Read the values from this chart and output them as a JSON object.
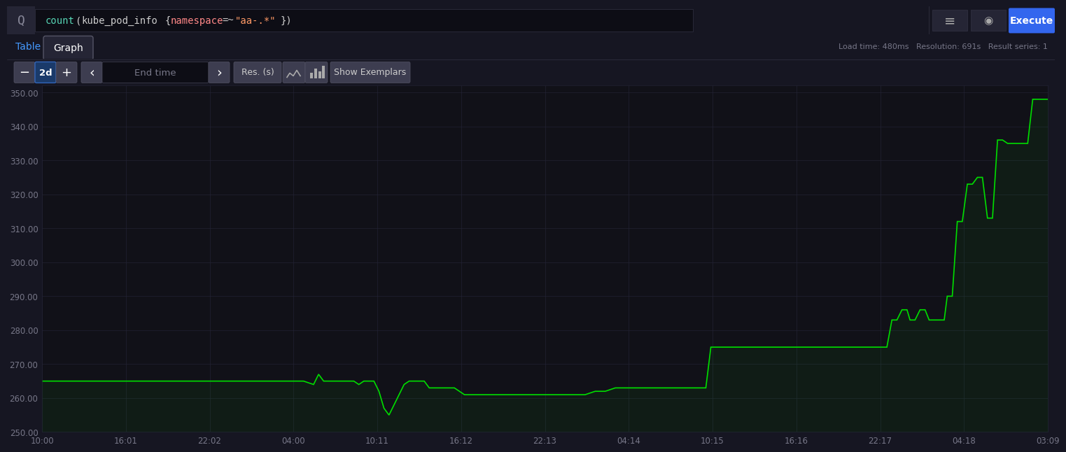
{
  "background_color": "#161622",
  "plot_bg_color": "#111118",
  "line_color": "#00dd00",
  "grid_color": "#222233",
  "tick_color": "#777788",
  "y_min": 250,
  "y_max": 352,
  "y_ticks": [
    250,
    260,
    270,
    280,
    290,
    300,
    310,
    320,
    330,
    340,
    350
  ],
  "x_labels": [
    "10:00",
    "16:01",
    "22:02",
    "04:00",
    "10:11",
    "16:12",
    "22:13",
    "04:14",
    "10:15",
    "16:16",
    "22:17",
    "04:18",
    "03:09"
  ],
  "series": [
    [
      0.0,
      265
    ],
    [
      0.02,
      265
    ],
    [
      0.04,
      265
    ],
    [
      0.06,
      265
    ],
    [
      0.08,
      265
    ],
    [
      0.1,
      265
    ],
    [
      0.12,
      265
    ],
    [
      0.14,
      265
    ],
    [
      0.16,
      265
    ],
    [
      0.18,
      265
    ],
    [
      0.2,
      265
    ],
    [
      0.22,
      265
    ],
    [
      0.24,
      265
    ],
    [
      0.26,
      265
    ],
    [
      0.27,
      264
    ],
    [
      0.275,
      267
    ],
    [
      0.28,
      265
    ],
    [
      0.31,
      265
    ],
    [
      0.315,
      264
    ],
    [
      0.32,
      265
    ],
    [
      0.33,
      265
    ],
    [
      0.335,
      262
    ],
    [
      0.34,
      257
    ],
    [
      0.345,
      255
    ],
    [
      0.35,
      258
    ],
    [
      0.355,
      261
    ],
    [
      0.36,
      264
    ],
    [
      0.365,
      265
    ],
    [
      0.37,
      265
    ],
    [
      0.375,
      265
    ],
    [
      0.38,
      265
    ],
    [
      0.385,
      263
    ],
    [
      0.39,
      263
    ],
    [
      0.395,
      263
    ],
    [
      0.4,
      263
    ],
    [
      0.405,
      263
    ],
    [
      0.41,
      263
    ],
    [
      0.415,
      262
    ],
    [
      0.42,
      261
    ],
    [
      0.43,
      261
    ],
    [
      0.44,
      261
    ],
    [
      0.45,
      261
    ],
    [
      0.46,
      261
    ],
    [
      0.465,
      261
    ],
    [
      0.47,
      261
    ],
    [
      0.48,
      261
    ],
    [
      0.49,
      261
    ],
    [
      0.5,
      261
    ],
    [
      0.51,
      261
    ],
    [
      0.52,
      261
    ],
    [
      0.53,
      261
    ],
    [
      0.54,
      261
    ],
    [
      0.55,
      262
    ],
    [
      0.56,
      262
    ],
    [
      0.57,
      263
    ],
    [
      0.58,
      263
    ],
    [
      0.59,
      263
    ],
    [
      0.6,
      263
    ],
    [
      0.61,
      263
    ],
    [
      0.62,
      263
    ],
    [
      0.63,
      263
    ],
    [
      0.64,
      263
    ],
    [
      0.65,
      263
    ],
    [
      0.66,
      263
    ],
    [
      0.665,
      275
    ],
    [
      0.67,
      275
    ],
    [
      0.68,
      275
    ],
    [
      0.7,
      275
    ],
    [
      0.72,
      275
    ],
    [
      0.74,
      275
    ],
    [
      0.76,
      275
    ],
    [
      0.78,
      275
    ],
    [
      0.8,
      275
    ],
    [
      0.82,
      275
    ],
    [
      0.84,
      275
    ],
    [
      0.845,
      283
    ],
    [
      0.85,
      283
    ],
    [
      0.855,
      286
    ],
    [
      0.86,
      286
    ],
    [
      0.863,
      283
    ],
    [
      0.868,
      283
    ],
    [
      0.873,
      286
    ],
    [
      0.878,
      286
    ],
    [
      0.882,
      283
    ],
    [
      0.887,
      283
    ],
    [
      0.892,
      283
    ],
    [
      0.897,
      283
    ],
    [
      0.9,
      290
    ],
    [
      0.905,
      290
    ],
    [
      0.91,
      312
    ],
    [
      0.915,
      312
    ],
    [
      0.92,
      323
    ],
    [
      0.925,
      323
    ],
    [
      0.93,
      325
    ],
    [
      0.935,
      325
    ],
    [
      0.94,
      313
    ],
    [
      0.945,
      313
    ],
    [
      0.95,
      336
    ],
    [
      0.955,
      336
    ],
    [
      0.96,
      335
    ],
    [
      0.97,
      335
    ],
    [
      0.975,
      335
    ],
    [
      0.98,
      335
    ],
    [
      0.985,
      348
    ],
    [
      1.0,
      348
    ]
  ],
  "header_bg": "#1c1c28",
  "searchbar_bg": "#0d0d15",
  "tab_bar_bg": "#161622",
  "tab_active_bg": "#252535",
  "tab_active_border": "#555566",
  "controls_bg": "#161622",
  "button_bg": "#3d3d50",
  "day_btn_bg": "#1a3a6a",
  "day_btn_border": "#3366bb",
  "execute_bg": "#3366ee",
  "query_count_color": "#56d4b4",
  "query_func_color": "#cccccc",
  "query_label_color": "#ff8888",
  "query_value_color": "#ff9966",
  "load_time_text": "Load time: 480ms   Resolution: 691s   Result series: 1"
}
